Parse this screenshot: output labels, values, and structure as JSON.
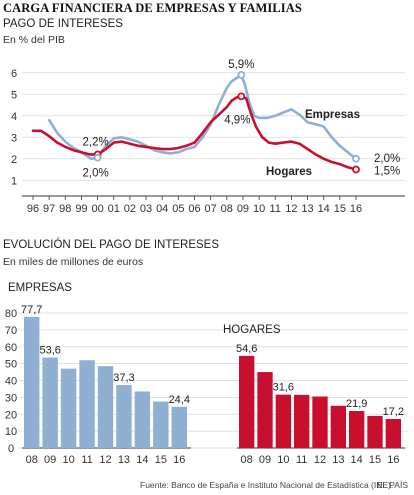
{
  "title": "CARGA FINANCIERA DE EMPRESAS Y FAMILIAS",
  "top_chart": {
    "title": "PAGO DE INTERESES",
    "subtitle": "En % del PIB"
  },
  "bottom_section": {
    "title": "EVOLUCIÓN DEL PAGO DE INTERESES",
    "subtitle": "En miles de millones de euros"
  },
  "footer": {
    "source": "Fuente: Banco de España e Instituto Nacional de Estadística (INE).",
    "brand": "EL PAÍS"
  },
  "colors": {
    "empresas": "#8fb0d3",
    "hogares": "#c8102e",
    "grid": "#d7d7d7",
    "axis": "#333333"
  },
  "chart_data": [
    {
      "type": "line",
      "title": "PAGO DE INTERESES",
      "ylabel": "En % del PIB",
      "ylim": [
        0.5,
        6.5
      ],
      "yticks": [
        1,
        2,
        3,
        4,
        5,
        6
      ],
      "xticks": [
        "96",
        "97",
        "98",
        "99",
        "00",
        "01",
        "02",
        "03",
        "04",
        "05",
        "06",
        "07",
        "08",
        "09",
        "10",
        "11",
        "12",
        "13",
        "14",
        "15",
        "16"
      ],
      "grid": true,
      "series": [
        {
          "name": "Empresas",
          "color": "#8fb0d3",
          "x": [
            1997,
            1997.5,
            1998,
            1998.5,
            1999,
            1999.6,
            2000,
            2000.5,
            2001,
            2001.5,
            2002,
            2002.5,
            2003,
            2003.5,
            2004,
            2004.5,
            2005,
            2005.5,
            2006,
            2006.5,
            2007,
            2007.5,
            2008,
            2008.3,
            2008.6,
            2008.9,
            2009.1,
            2009.4,
            2009.7,
            2010,
            2010.5,
            2011,
            2011.5,
            2012,
            2012.5,
            2013,
            2013.5,
            2014,
            2014.5,
            2015,
            2015.5,
            2016
          ],
          "values": [
            3.8,
            3.2,
            2.8,
            2.5,
            2.3,
            2.0,
            2.05,
            2.6,
            2.95,
            3.0,
            2.9,
            2.8,
            2.6,
            2.4,
            2.3,
            2.25,
            2.3,
            2.45,
            2.55,
            3.0,
            3.6,
            4.5,
            5.3,
            5.6,
            5.75,
            5.9,
            5.5,
            4.6,
            4.0,
            3.9,
            3.9,
            4.0,
            4.15,
            4.3,
            4.05,
            3.7,
            3.6,
            3.5,
            3.0,
            2.6,
            2.3,
            2.0
          ]
        },
        {
          "name": "Hogares",
          "color": "#c8102e",
          "x": [
            1996,
            1996.5,
            1997,
            1997.5,
            1998,
            1998.5,
            1999,
            1999.5,
            2000,
            2000.5,
            2001,
            2001.5,
            2002,
            2002.5,
            2003,
            2003.5,
            2004,
            2004.5,
            2005,
            2005.5,
            2006,
            2006.5,
            2007,
            2007.5,
            2008,
            2008.3,
            2008.6,
            2008.9,
            2009.2,
            2009.5,
            2009.8,
            2010.2,
            2010.6,
            2011,
            2011.5,
            2012,
            2012.5,
            2013,
            2013.5,
            2014,
            2014.5,
            2015,
            2015.5,
            2016
          ],
          "values": [
            3.3,
            3.3,
            3.05,
            2.75,
            2.55,
            2.4,
            2.3,
            2.2,
            2.2,
            2.45,
            2.75,
            2.8,
            2.7,
            2.6,
            2.55,
            2.5,
            2.45,
            2.45,
            2.5,
            2.6,
            2.75,
            3.2,
            3.7,
            4.05,
            4.4,
            4.7,
            4.85,
            4.9,
            4.8,
            4.1,
            3.5,
            3.0,
            2.75,
            2.7,
            2.75,
            2.8,
            2.7,
            2.45,
            2.2,
            2.0,
            1.85,
            1.75,
            1.6,
            1.5
          ]
        }
      ],
      "annotations": [
        {
          "text": "2,2%",
          "series": "Hogares",
          "x": 2000,
          "value": 2.2
        },
        {
          "text": "2,0%",
          "series": "Empresas",
          "x": 2000,
          "value": 2.05
        },
        {
          "text": "5,9%",
          "series": "Empresas",
          "x": 2008.9,
          "value": 5.9
        },
        {
          "text": "4,9%",
          "series": "Hogares",
          "x": 2008.9,
          "value": 4.9
        },
        {
          "text": "2,0%",
          "series": "Empresas",
          "x": 2016,
          "value": 2.0
        },
        {
          "text": "1,5%",
          "series": "Hogares",
          "x": 2016,
          "value": 1.5
        }
      ]
    },
    {
      "type": "bar",
      "title": "EMPRESAS",
      "ylabel": "En miles de millones de euros",
      "ylim": [
        0,
        80
      ],
      "yticks": [
        0,
        10,
        20,
        30,
        40,
        50,
        60,
        70,
        80
      ],
      "grid": true,
      "categories": [
        "08",
        "09",
        "10",
        "11",
        "12",
        "13",
        "14",
        "15",
        "16"
      ],
      "values": [
        77.7,
        53.6,
        47,
        52,
        48.5,
        37.3,
        33.5,
        27.5,
        24.4
      ],
      "data_labels": [
        "77,7",
        "53,6",
        "",
        "",
        "",
        "37,3",
        "",
        "",
        "24,4"
      ],
      "color": "#8fb0d3"
    },
    {
      "type": "bar",
      "title": "HOGARES",
      "ylim": [
        0,
        80
      ],
      "grid": true,
      "categories": [
        "08",
        "09",
        "10",
        "11",
        "12",
        "13",
        "14",
        "15",
        "16"
      ],
      "values": [
        54.6,
        45,
        31.6,
        31.5,
        30.5,
        25,
        21.9,
        19,
        17.2
      ],
      "data_labels": [
        "54,6",
        "",
        "31,6",
        "",
        "",
        "",
        "21,9",
        "",
        "17,2"
      ],
      "color": "#c8102e"
    }
  ]
}
